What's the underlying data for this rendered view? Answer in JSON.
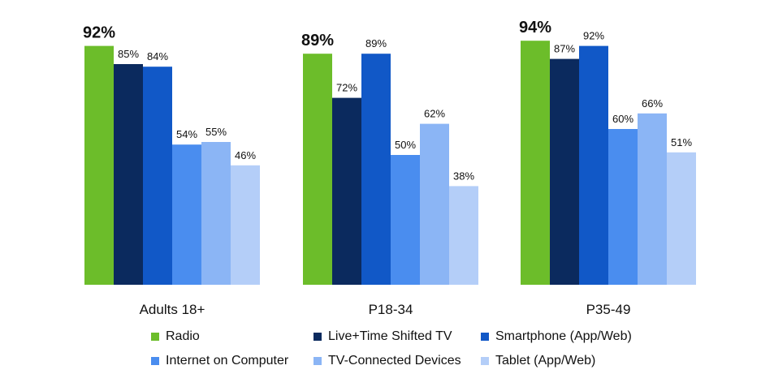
{
  "chart_data": {
    "type": "bar",
    "categories": [
      "Adults 18+",
      "P18-34",
      "P35-49"
    ],
    "series": [
      {
        "name": "Radio",
        "color": "#6cbd2a",
        "values": [
          92,
          89,
          94
        ],
        "labels": [
          "92%",
          "89%",
          "94%"
        ],
        "emphasis": true
      },
      {
        "name": "Live+Time Shifted TV",
        "color": "#0b2a5e",
        "values": [
          85,
          72,
          87
        ],
        "labels": [
          "85%",
          "72%",
          "87%"
        ]
      },
      {
        "name": "Smartphone (App/Web)",
        "color": "#1158c7",
        "values": [
          84,
          89,
          92
        ],
        "labels": [
          "84%",
          "89%",
          "92%"
        ]
      },
      {
        "name": "Internet on Computer",
        "color": "#4a8def",
        "values": [
          54,
          50,
          60
        ],
        "labels": [
          "54%",
          "50%",
          "60%"
        ]
      },
      {
        "name": "TV-Connected Devices",
        "color": "#8bb5f5",
        "values": [
          55,
          62,
          66
        ],
        "labels": [
          "55%",
          "62%",
          "66%"
        ]
      },
      {
        "name": "Tablet (App/Web)",
        "color": "#b4cef8",
        "values": [
          46,
          38,
          51
        ],
        "labels": [
          "46%",
          "38%",
          "51%"
        ]
      }
    ],
    "ylim": [
      0,
      100
    ],
    "grid": false,
    "legend_position": "bottom"
  }
}
